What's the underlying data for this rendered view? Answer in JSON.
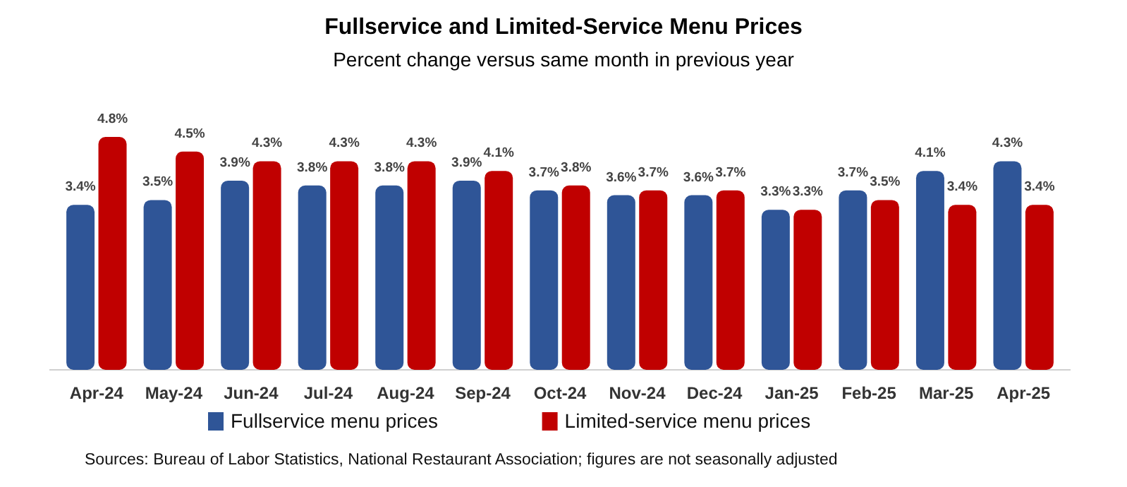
{
  "chart_data": {
    "type": "bar",
    "title": "Fullservice and Limited-Service Menu Prices",
    "subtitle": "Percent change versus same month in previous year",
    "categories": [
      "Apr-24",
      "May-24",
      "Jun-24",
      "Jul-24",
      "Aug-24",
      "Sep-24",
      "Oct-24",
      "Nov-24",
      "Dec-24",
      "Jan-25",
      "Feb-25",
      "Mar-25",
      "Apr-25"
    ],
    "series": [
      {
        "name": "Fullservice menu prices",
        "color": "#2f5597",
        "values": [
          3.4,
          3.5,
          3.9,
          3.8,
          3.8,
          3.9,
          3.7,
          3.6,
          3.6,
          3.3,
          3.7,
          4.1,
          4.3
        ],
        "value_labels": [
          "3.4%",
          "3.5%",
          "3.9%",
          "3.8%",
          "3.8%",
          "3.9%",
          "3.7%",
          "3.6%",
          "3.6%",
          "3.3%",
          "3.7%",
          "4.1%",
          "4.3%"
        ]
      },
      {
        "name": "Limited-service menu prices",
        "color": "#c00000",
        "values": [
          4.8,
          4.5,
          4.3,
          4.3,
          4.3,
          4.1,
          3.8,
          3.7,
          3.7,
          3.3,
          3.5,
          3.4,
          3.4
        ],
        "value_labels": [
          "4.8%",
          "4.5%",
          "4.3%",
          "4.3%",
          "4.3%",
          "4.1%",
          "3.8%",
          "3.7%",
          "3.7%",
          "3.3%",
          "3.5%",
          "3.4%",
          "3.4%"
        ]
      }
    ],
    "legend": "bottom",
    "annotations": [
      "Sources: Bureau of Labor Statistics, National Restaurant Association; figures are not seasonally adjusted"
    ]
  }
}
